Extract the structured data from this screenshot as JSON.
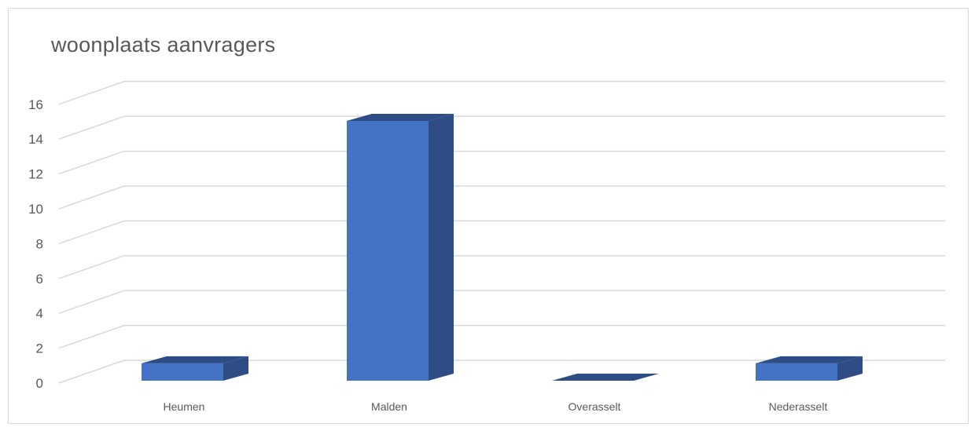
{
  "chart_data": {
    "type": "bar",
    "title": "woonplaats aanvragers",
    "categories": [
      "Heumen",
      "Malden",
      "Overasselt",
      "Nederasselt"
    ],
    "values": [
      1,
      15,
      0,
      1
    ],
    "ylim": [
      0,
      16
    ],
    "yticks": [
      0,
      2,
      4,
      6,
      8,
      10,
      12,
      14,
      16
    ],
    "grid": true,
    "legend": "none",
    "colors": {
      "front": "#4472c4",
      "side": "#2f4d84",
      "top": "#2e4c86",
      "grid": "#d9d9d9"
    }
  }
}
